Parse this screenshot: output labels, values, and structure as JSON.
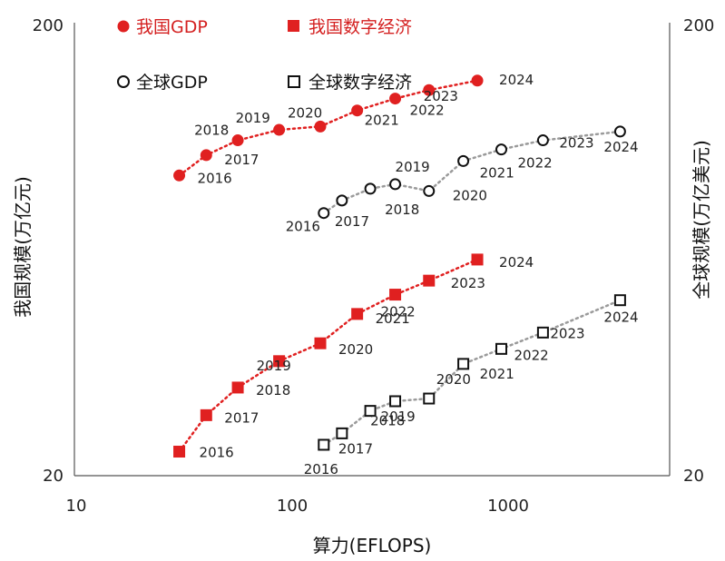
{
  "chart_data": {
    "type": "scatter",
    "x_scale": "log",
    "y_scale": "log",
    "xlabel": "算力(EFLOPS)",
    "ylabel_left": "我国规模(万亿元)",
    "ylabel_right": "全球规模(万亿美元)",
    "xlim": [
      10,
      4500
    ],
    "ylim": [
      20,
      200
    ],
    "x_ticks": [
      "10",
      "100",
      "1000"
    ],
    "y_ticks_left": [
      "20",
      "200"
    ],
    "y_ticks_right": [
      "20",
      "200"
    ],
    "legend": {
      "placement": "top-left"
    },
    "series": [
      {
        "name": "我国GDP",
        "marker": "circle-filled",
        "color": "#e02020",
        "trend": "dotted",
        "points": [
          {
            "label": "2016",
            "x": 30,
            "y": 92
          },
          {
            "label": "2017",
            "x": 40,
            "y": 102
          },
          {
            "label": "2018",
            "x": 56,
            "y": 110
          },
          {
            "label": "2019",
            "x": 87,
            "y": 116
          },
          {
            "label": "2020",
            "x": 135,
            "y": 118
          },
          {
            "label": "2021",
            "x": 200,
            "y": 128
          },
          {
            "label": "2022",
            "x": 300,
            "y": 136
          },
          {
            "label": "2023",
            "x": 430,
            "y": 142
          },
          {
            "label": "2024",
            "x": 720,
            "y": 149
          }
        ]
      },
      {
        "name": "我国数字经济",
        "marker": "square-filled",
        "color": "#e02020",
        "trend": "dotted",
        "points": [
          {
            "label": "2016",
            "x": 30,
            "y": 22.6
          },
          {
            "label": "2017",
            "x": 40,
            "y": 27.2
          },
          {
            "label": "2018",
            "x": 56,
            "y": 31.3
          },
          {
            "label": "2019",
            "x": 87,
            "y": 35.8
          },
          {
            "label": "2020",
            "x": 135,
            "y": 39.2
          },
          {
            "label": "2021",
            "x": 200,
            "y": 45.5
          },
          {
            "label": "2022",
            "x": 300,
            "y": 50.2
          },
          {
            "label": "2023",
            "x": 430,
            "y": 53.9
          },
          {
            "label": "2024",
            "x": 720,
            "y": 60
          }
        ]
      },
      {
        "name": "全球GDP",
        "marker": "circle-open",
        "color": "#111111",
        "trend": "dotted",
        "points": [
          {
            "label": "2016",
            "x": 140,
            "y": 76
          },
          {
            "label": "2017",
            "x": 170,
            "y": 81
          },
          {
            "label": "2018",
            "x": 230,
            "y": 86
          },
          {
            "label": "2019",
            "x": 300,
            "y": 88
          },
          {
            "label": "2020",
            "x": 430,
            "y": 85
          },
          {
            "label": "2021",
            "x": 620,
            "y": 99
          },
          {
            "label": "2022",
            "x": 930,
            "y": 105
          },
          {
            "label": "2023",
            "x": 1450,
            "y": 110
          },
          {
            "label": "2024",
            "x": 3300,
            "y": 115
          }
        ]
      },
      {
        "name": "全球数字经济",
        "marker": "square-open",
        "color": "#111111",
        "trend": "dotted",
        "points": [
          {
            "label": "2016",
            "x": 140,
            "y": 23.4
          },
          {
            "label": "2017",
            "x": 170,
            "y": 24.8
          },
          {
            "label": "2018",
            "x": 230,
            "y": 27.8
          },
          {
            "label": "2019",
            "x": 300,
            "y": 29.2
          },
          {
            "label": "2020",
            "x": 430,
            "y": 29.6
          },
          {
            "label": "2021",
            "x": 620,
            "y": 35.3
          },
          {
            "label": "2022",
            "x": 930,
            "y": 38.1
          },
          {
            "label": "2023",
            "x": 1450,
            "y": 41.4
          },
          {
            "label": "2024",
            "x": 3300,
            "y": 48.8
          }
        ]
      }
    ]
  }
}
